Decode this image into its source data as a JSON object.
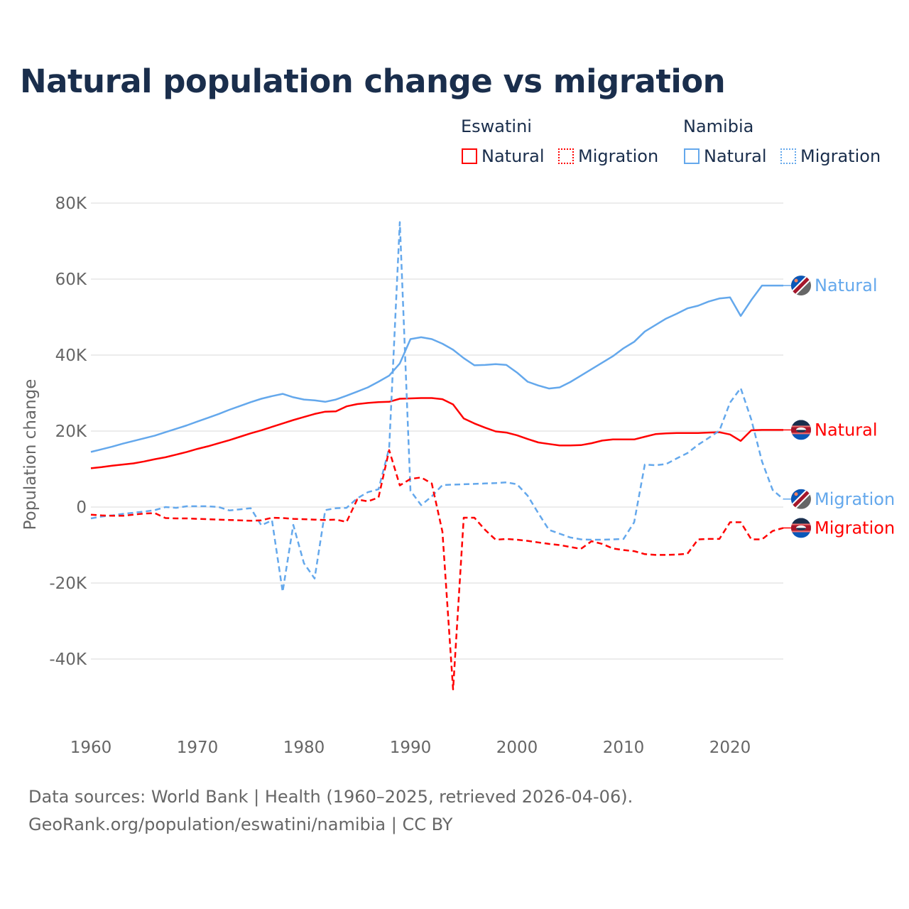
{
  "title": "Natural population change vs migration",
  "legend": {
    "groups": [
      {
        "name": "Eswatini",
        "color": "#ff0000",
        "items": [
          "Natural",
          "Migration"
        ]
      },
      {
        "name": "Namibia",
        "color": "#64a8ec",
        "items": [
          "Natural",
          "Migration"
        ]
      }
    ]
  },
  "footer": {
    "line1": "Data sources: World Bank | Health (1960–2025, retrieved 2026-04-06).",
    "line2": "GeoRank.org/population/eswatini/namibia | CC BY"
  },
  "chart_data": {
    "type": "line",
    "title": "Natural population change vs migration",
    "xlabel": "",
    "ylabel": "Population change",
    "xlim": [
      1960,
      2025
    ],
    "ylim": [
      -50000,
      80000
    ],
    "x_ticks": [
      1960,
      1970,
      1980,
      1990,
      2000,
      2010,
      2020
    ],
    "x_tick_labels": [
      "1960",
      "1970",
      "1980",
      "1990",
      "2000",
      "2010",
      "2020"
    ],
    "y_ticks": [
      80000,
      60000,
      40000,
      20000,
      0,
      -20000,
      -40000
    ],
    "y_tick_labels": [
      "80K",
      "60K",
      "40K",
      "20K",
      "0",
      "-20K",
      "-40K"
    ],
    "grid": true,
    "legend_position": "top-right",
    "x_start": 1960,
    "series": [
      {
        "name": "Namibia Natural",
        "country": "Namibia",
        "label": "Natural",
        "color": "#64a8ec",
        "dash": false,
        "values": [
          14.5,
          15.2,
          15.9,
          16.7,
          17.4,
          18.1,
          18.8,
          19.7,
          20.6,
          21.5,
          22.5,
          23.5,
          24.5,
          25.6,
          26.6,
          27.6,
          28.5,
          29.2,
          29.8,
          28.9,
          28.3,
          28.1,
          27.7,
          28.3,
          29.3,
          30.4,
          31.5,
          33.0,
          34.6,
          37.8,
          44.2,
          44.7,
          44.2,
          43.0,
          41.4,
          39.2,
          37.3,
          37.4,
          37.6,
          37.4,
          35.4,
          33.0,
          32.0,
          31.2,
          31.5,
          32.9,
          34.6,
          36.3,
          38.0,
          39.7,
          41.8,
          43.5,
          46.2,
          47.9,
          49.6,
          50.9,
          52.3,
          53.0,
          54.1,
          54.9,
          55.2,
          50.3,
          54.5,
          58.3,
          58.3,
          58.3
        ]
      },
      {
        "name": "Eswatini Natural",
        "country": "Eswatini",
        "label": "Natural",
        "color": "#ff0000",
        "dash": false,
        "values": [
          10.2,
          10.5,
          10.9,
          11.2,
          11.5,
          12.0,
          12.6,
          13.1,
          13.8,
          14.5,
          15.3,
          16.0,
          16.8,
          17.6,
          18.5,
          19.4,
          20.2,
          21.1,
          22.0,
          22.9,
          23.7,
          24.5,
          25.1,
          25.2,
          26.5,
          27.1,
          27.4,
          27.6,
          27.7,
          28.5,
          28.6,
          28.7,
          28.7,
          28.4,
          27.0,
          23.3,
          22.0,
          20.9,
          19.9,
          19.6,
          18.9,
          17.9,
          17.0,
          16.6,
          16.2,
          16.2,
          16.3,
          16.8,
          17.5,
          17.8,
          17.8,
          17.8,
          18.5,
          19.2,
          19.4,
          19.5,
          19.5,
          19.5,
          19.6,
          19.7,
          19.1,
          17.4,
          20.2,
          20.3,
          20.3,
          20.3
        ]
      },
      {
        "name": "Namibia Migration",
        "country": "Namibia",
        "label": "Migration",
        "color": "#64a8ec",
        "dash": true,
        "values": [
          -3.0,
          -2.5,
          -2.2,
          -1.8,
          -1.5,
          -1.2,
          -0.8,
          0.0,
          -0.2,
          0.2,
          0.2,
          0.2,
          0.0,
          -0.9,
          -0.6,
          -0.3,
          -4.8,
          -3.5,
          -22.3,
          -4.7,
          -14.8,
          -18.8,
          -0.8,
          -0.3,
          -0.2,
          2.3,
          3.9,
          4.7,
          15.5,
          75.0,
          4.3,
          0.5,
          2.8,
          5.8,
          5.9,
          6.0,
          6.1,
          6.2,
          6.3,
          6.5,
          6.0,
          3.0,
          -1.6,
          -6.0,
          -7.0,
          -8.0,
          -8.5,
          -8.6,
          -8.6,
          -8.5,
          -8.4,
          -4.0,
          11.2,
          11.0,
          11.3,
          12.8,
          14.2,
          16.4,
          18.2,
          20.1,
          27.5,
          31.3,
          23.0,
          12.0,
          4.5,
          2.1
        ]
      },
      {
        "name": "Eswatini Migration",
        "country": "Eswatini",
        "label": "Migration",
        "color": "#ff0000",
        "dash": true,
        "values": [
          -2.0,
          -2.2,
          -2.3,
          -2.3,
          -2.0,
          -1.7,
          -1.6,
          -2.9,
          -3.0,
          -3.0,
          -3.1,
          -3.2,
          -3.3,
          -3.4,
          -3.5,
          -3.6,
          -3.5,
          -2.8,
          -2.9,
          -3.1,
          -3.2,
          -3.3,
          -3.4,
          -3.3,
          -3.9,
          2.0,
          1.5,
          2.5,
          15.0,
          5.7,
          7.4,
          7.8,
          6.2,
          -6.5,
          -48.0,
          -2.8,
          -2.8,
          -6.0,
          -8.6,
          -8.4,
          -8.6,
          -8.9,
          -9.3,
          -9.7,
          -10.0,
          -10.5,
          -11.0,
          -9.0,
          -9.7,
          -10.9,
          -11.3,
          -11.6,
          -12.4,
          -12.6,
          -12.6,
          -12.5,
          -12.3,
          -8.5,
          -8.4,
          -8.4,
          -4.0,
          -4.0,
          -8.5,
          -8.5,
          -6.3,
          -5.5
        ]
      }
    ],
    "values_unit": "thousands"
  }
}
